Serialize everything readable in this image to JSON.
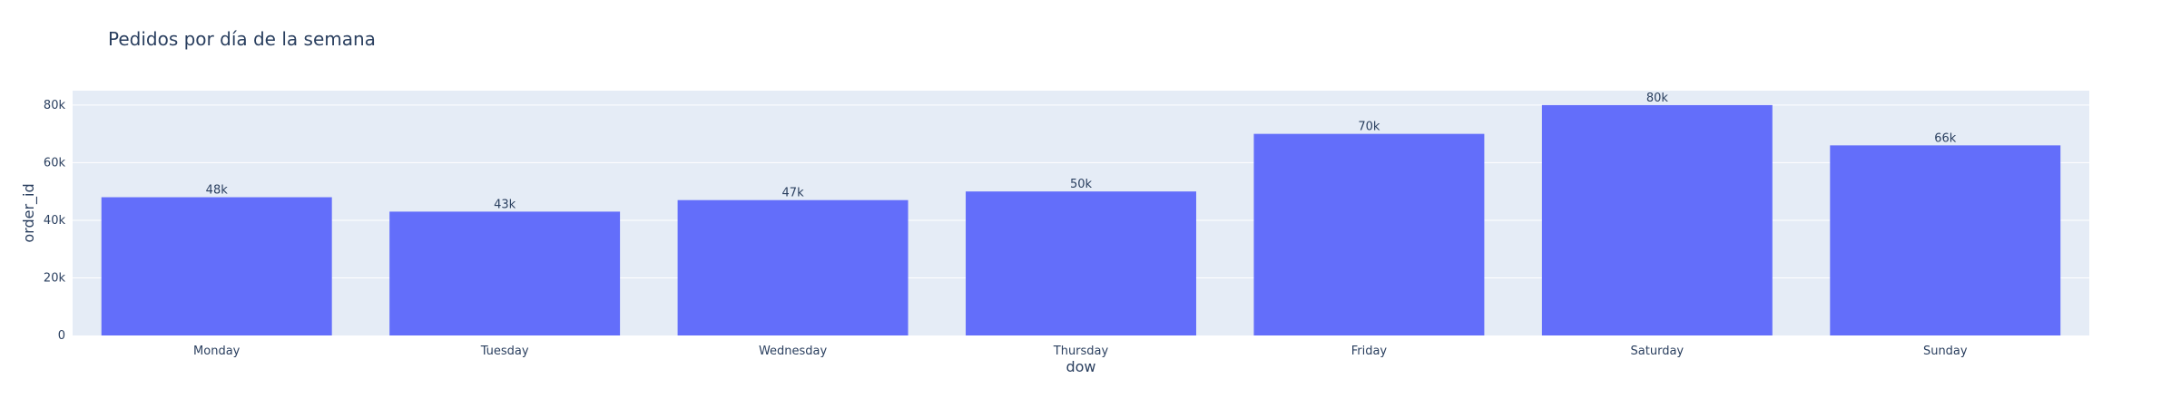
{
  "chart_data": {
    "type": "bar",
    "title": "Pedidos por día de la semana",
    "xlabel": "dow",
    "ylabel": "order_id",
    "categories": [
      "Monday",
      "Tuesday",
      "Wednesday",
      "Thursday",
      "Friday",
      "Saturday",
      "Sunday"
    ],
    "values": [
      48,
      43,
      47,
      50,
      70,
      80,
      66
    ],
    "value_units": "thousands",
    "text_labels": [
      "48k",
      "43k",
      "47k",
      "50k",
      "70k",
      "80k",
      "66k"
    ],
    "ylim": [
      0,
      85
    ],
    "yticks": [
      0,
      20,
      40,
      60,
      80
    ],
    "ytick_labels": [
      "0",
      "20k",
      "40k",
      "60k",
      "80k"
    ],
    "grid": true,
    "legend": "none",
    "colors": {
      "bar": "#636efa",
      "plot_bg": "#e5ecf6",
      "grid": "#ffffff",
      "text": "#2a3f5f"
    }
  }
}
